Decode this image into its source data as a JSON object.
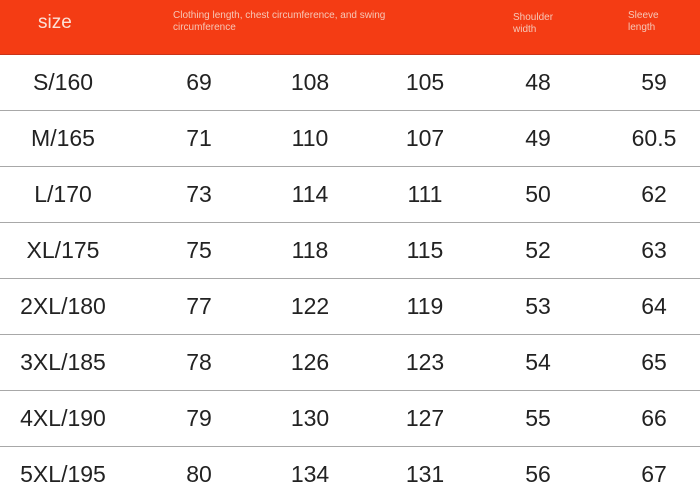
{
  "header": {
    "size": "size",
    "combined": "Clothing length, chest circumference, and swing circumference",
    "shoulder": "Shoulder width",
    "sleeve": "Sleeve length"
  },
  "accent": "#f43c14",
  "rows": [
    [
      "S/160",
      "69",
      "108",
      "105",
      "48",
      "59"
    ],
    [
      "M/165",
      "71",
      "110",
      "107",
      "49",
      "60.5"
    ],
    [
      "L/170",
      "73",
      "114",
      "111",
      "50",
      "62"
    ],
    [
      "XL/175",
      "75",
      "118",
      "115",
      "52",
      "63"
    ],
    [
      "2XL/180",
      "77",
      "122",
      "119",
      "53",
      "64"
    ],
    [
      "3XL/185",
      "78",
      "126",
      "123",
      "54",
      "65"
    ],
    [
      "4XL/190",
      "79",
      "130",
      "127",
      "55",
      "66"
    ],
    [
      "5XL/195",
      "80",
      "134",
      "131",
      "56",
      "67"
    ]
  ]
}
